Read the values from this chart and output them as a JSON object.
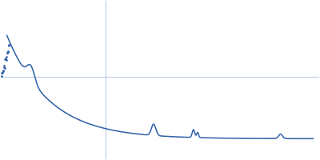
{
  "line_color": "#2d5fa8",
  "background_color": "#ffffff",
  "grid_color": "#b8cce8",
  "figsize": [
    4.0,
    2.0
  ],
  "dpi": 100,
  "grid_hline_y": 0.52,
  "grid_vline_x": 0.33
}
